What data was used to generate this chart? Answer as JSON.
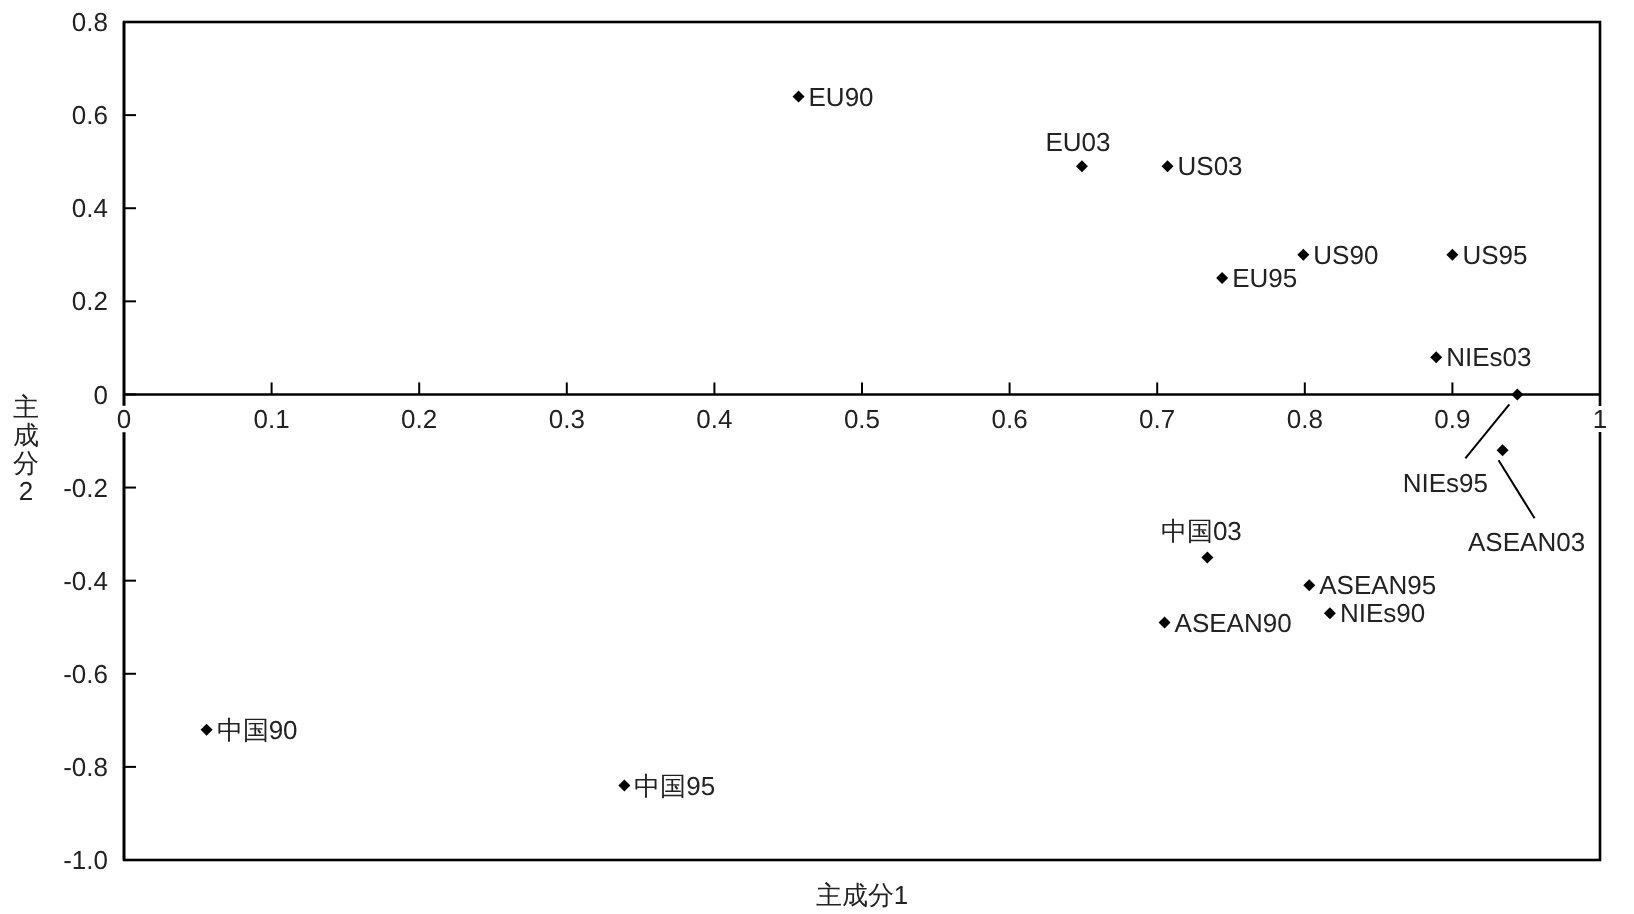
{
  "chart_data": {
    "type": "scatter",
    "xlabel": "主成分1",
    "ylabel": "主成分2",
    "xlim": [
      0,
      1
    ],
    "xticks": [
      0,
      0.1,
      0.2,
      0.3,
      0.4,
      0.5,
      0.6,
      0.7,
      0.8,
      0.9,
      1
    ],
    "ylim": [
      -1,
      0.8
    ],
    "yticks": [
      {
        "value": 0.8,
        "label": "0.8"
      },
      {
        "value": 0.6,
        "label": "0.6"
      },
      {
        "value": 0.4,
        "label": "0.4"
      },
      {
        "value": 0.2,
        "label": "0.2"
      },
      0,
      {
        "value": -0.2,
        "label": "-0.2"
      },
      {
        "value": -0.4,
        "label": "-0.4"
      },
      {
        "value": -0.6,
        "label": "-0.6"
      },
      {
        "value": -0.8,
        "label": "-0.8"
      },
      {
        "value": -1,
        "label": "-1.0"
      }
    ],
    "grid": false,
    "marker": "diamond",
    "series": [
      {
        "color": "#000000",
        "x": [
          0.457,
          0.649,
          0.707,
          0.744,
          0.799,
          0.9,
          0.889,
          0.944,
          0.934,
          0.734,
          0.803,
          0.817,
          0.705,
          0.056,
          0.339
        ],
        "values": [
          0.64,
          0.49,
          0.49,
          0.25,
          0.3,
          0.3,
          0.08,
          0,
          -0.12,
          -0.35,
          -0.41,
          -0.47,
          -0.49,
          -0.72,
          -0.84
        ]
      }
    ],
    "annotations": [
      {
        "text": "EU90",
        "x": 0.457,
        "y": 0.64
      },
      {
        "text": "EU03",
        "x": 0.649,
        "y": 0.49
      },
      {
        "text": "US03",
        "x": 0.707,
        "y": 0.49
      },
      {
        "text": "EU95",
        "x": 0.744,
        "y": 0.25
      },
      {
        "text": "US90",
        "x": 0.799,
        "y": 0.3
      },
      {
        "text": "US95",
        "x": 0.9,
        "y": 0.3
      },
      {
        "text": "NIEs03",
        "x": 0.889,
        "y": 0.08
      },
      {
        "text": "NIEs95",
        "x": 0.944,
        "y": 0
      },
      {
        "text": "ASEAN03",
        "x": 0.934,
        "y": -0.12
      },
      {
        "text": "中国03",
        "x": 0.734,
        "y": -0.35
      },
      {
        "text": "ASEAN95",
        "x": 0.803,
        "y": -0.41
      },
      {
        "text": "NIEs90",
        "x": 0.817,
        "y": -0.47
      },
      {
        "text": "ASEAN90",
        "x": 0.705,
        "y": -0.49
      },
      {
        "text": "中国90",
        "x": 0.056,
        "y": -0.72
      },
      {
        "text": "中国95",
        "x": 0.339,
        "y": -0.84
      }
    ]
  }
}
